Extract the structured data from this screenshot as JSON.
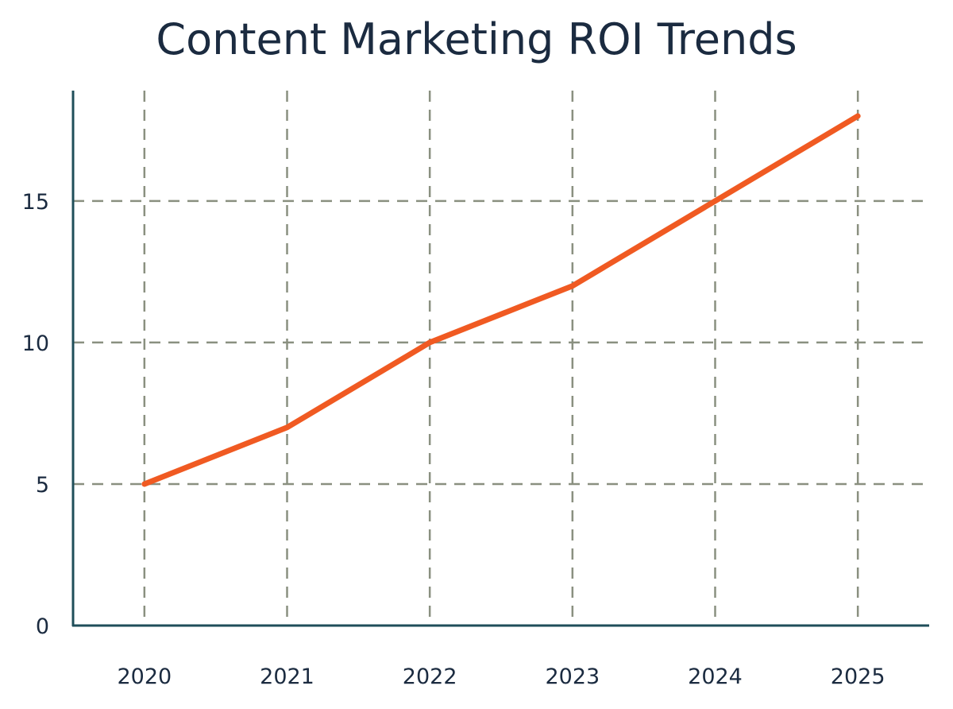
{
  "chart_data": {
    "type": "line",
    "title": "Content Marketing ROI Trends",
    "xlabel": "",
    "ylabel": "",
    "categories": [
      "2020",
      "2021",
      "2022",
      "2023",
      "2024",
      "2025"
    ],
    "series": [
      {
        "values": [
          5,
          7,
          10,
          12,
          15,
          18
        ],
        "color": "#f05a22"
      }
    ],
    "yticks": [
      0,
      5,
      10,
      15
    ],
    "ylim": [
      0,
      18.9
    ],
    "grid": true,
    "grid_style": "dashed",
    "colors": {
      "axis": "#1f4e5a",
      "grid": "#8a9080",
      "text": "#1b2b40"
    }
  }
}
